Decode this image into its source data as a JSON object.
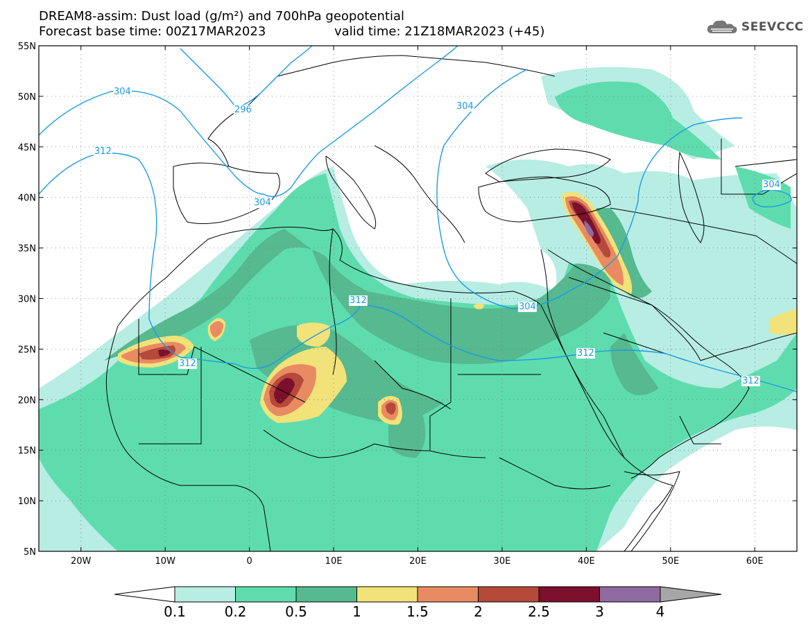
{
  "header": {
    "title_line1": "DREAM8-assim: Dust load (g/m²) and 700hPa geopotential",
    "title_line2": "Forecast base time: 00Z17MAR2023",
    "valid_time": "valid time: 21Z18MAR2023 (+45)"
  },
  "logo": {
    "text": "SEEVCCC",
    "icon": "cloud-icon"
  },
  "map": {
    "lat_labels": [
      "55N",
      "50N",
      "45N",
      "40N",
      "35N",
      "30N",
      "25N",
      "20N",
      "15N",
      "10N",
      "5N"
    ],
    "lon_labels": [
      "20W",
      "10W",
      "0",
      "10E",
      "20E",
      "30E",
      "40E",
      "50E",
      "60E"
    ],
    "contours": [
      {
        "label": "304",
        "color": "#1a9be6"
      },
      {
        "label": "296",
        "color": "#1a9be6"
      },
      {
        "label": "312",
        "color": "#1a9be6"
      },
      {
        "label": "304",
        "color": "#1a9be6"
      },
      {
        "label": "304",
        "color": "#1a9be6"
      },
      {
        "label": "304",
        "color": "#1a9be6"
      },
      {
        "label": "312",
        "color": "#1a9be6"
      },
      {
        "label": "312",
        "color": "#1a9be6"
      },
      {
        "label": "312",
        "color": "#1a9be6"
      },
      {
        "label": "304",
        "color": "#1a9be6"
      },
      {
        "label": "312",
        "color": "#1a9be6"
      }
    ]
  },
  "colorbar": {
    "labels": [
      "0.1",
      "0.2",
      "0.5",
      "1",
      "1.5",
      "2",
      "2.5",
      "3",
      "4"
    ],
    "colors": [
      "#b7ede3",
      "#5fdcae",
      "#56b98f",
      "#f2e27a",
      "#e98b62",
      "#b5493a",
      "#7b0f2c",
      "#8e6aa0"
    ]
  }
}
